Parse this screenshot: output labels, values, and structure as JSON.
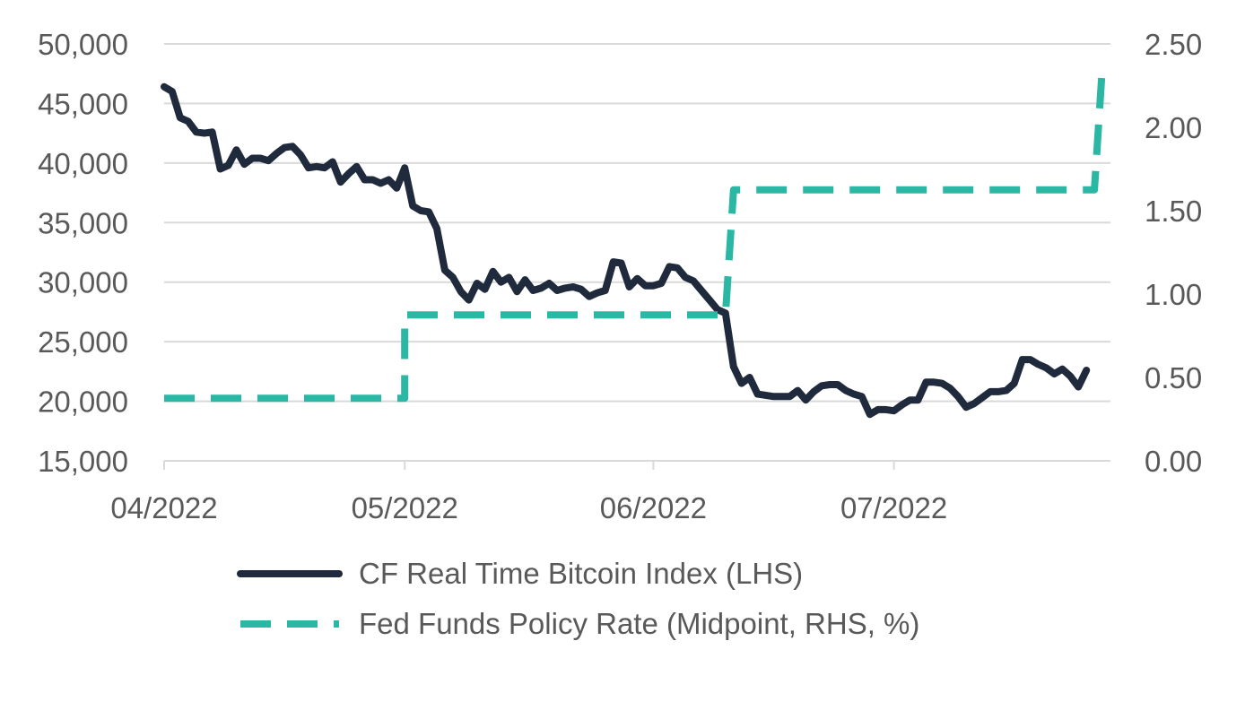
{
  "chart_data": {
    "type": "line",
    "x_range": [
      "2022-04-01",
      "2022-07-28"
    ],
    "x_ticks": [
      {
        "date": "2022-04-01",
        "label": "04/2022"
      },
      {
        "date": "2022-05-01",
        "label": "05/2022"
      },
      {
        "date": "2022-06-01",
        "label": "06/2022"
      },
      {
        "date": "2022-07-01",
        "label": "07/2022"
      }
    ],
    "y_left": {
      "min": 15000,
      "max": 50000,
      "ticks": [
        "15,000",
        "20,000",
        "25,000",
        "30,000",
        "35,000",
        "40,000",
        "45,000",
        "50,000"
      ],
      "values": [
        15000,
        20000,
        25000,
        30000,
        35000,
        40000,
        45000,
        50000
      ]
    },
    "y_right": {
      "min": 0,
      "max": 2.5,
      "ticks": [
        "0.00",
        "0.50",
        "1.00",
        "1.50",
        "2.00",
        "2.50"
      ],
      "values": [
        0,
        0.5,
        1.0,
        1.5,
        2.0,
        2.5
      ]
    },
    "grid": true,
    "legend_position": "bottom",
    "series": [
      {
        "name": "CF Real Time Bitcoin Index (LHS)",
        "axis": "left",
        "color": "#1f2a3c",
        "style": "solid",
        "points": [
          [
            "2022-04-01",
            46400
          ],
          [
            "2022-04-02",
            46000
          ],
          [
            "2022-04-03",
            43800
          ],
          [
            "2022-04-04",
            43500
          ],
          [
            "2022-04-05",
            42600
          ],
          [
            "2022-04-06",
            42500
          ],
          [
            "2022-04-07",
            42600
          ],
          [
            "2022-04-08",
            39500
          ],
          [
            "2022-04-09",
            39800
          ],
          [
            "2022-04-10",
            41100
          ],
          [
            "2022-04-11",
            39900
          ],
          [
            "2022-04-12",
            40400
          ],
          [
            "2022-04-13",
            40400
          ],
          [
            "2022-04-14",
            40200
          ],
          [
            "2022-04-15",
            40800
          ],
          [
            "2022-04-16",
            41300
          ],
          [
            "2022-04-17",
            41400
          ],
          [
            "2022-04-18",
            40700
          ],
          [
            "2022-04-19",
            39600
          ],
          [
            "2022-04-20",
            39700
          ],
          [
            "2022-04-21",
            39600
          ],
          [
            "2022-04-22",
            40100
          ],
          [
            "2022-04-23",
            38400
          ],
          [
            "2022-04-24",
            39100
          ],
          [
            "2022-04-25",
            39700
          ],
          [
            "2022-04-26",
            38600
          ],
          [
            "2022-04-27",
            38600
          ],
          [
            "2022-04-28",
            38300
          ],
          [
            "2022-04-29",
            38600
          ],
          [
            "2022-04-30",
            37900
          ],
          [
            "2022-05-01",
            39600
          ],
          [
            "2022-05-02",
            36400
          ],
          [
            "2022-05-03",
            36000
          ],
          [
            "2022-05-04",
            35900
          ],
          [
            "2022-05-05",
            34500
          ],
          [
            "2022-05-06",
            31000
          ],
          [
            "2022-05-07",
            30400
          ],
          [
            "2022-05-08",
            29200
          ],
          [
            "2022-05-09",
            28500
          ],
          [
            "2022-05-10",
            29900
          ],
          [
            "2022-05-11",
            29400
          ],
          [
            "2022-05-12",
            30900
          ],
          [
            "2022-05-13",
            30000
          ],
          [
            "2022-05-14",
            30400
          ],
          [
            "2022-05-15",
            29200
          ],
          [
            "2022-05-16",
            30200
          ],
          [
            "2022-05-17",
            29300
          ],
          [
            "2022-05-18",
            29500
          ],
          [
            "2022-05-19",
            29900
          ],
          [
            "2022-05-20",
            29300
          ],
          [
            "2022-05-21",
            29500
          ],
          [
            "2022-05-22",
            29600
          ],
          [
            "2022-05-23",
            29400
          ],
          [
            "2022-05-24",
            28800
          ],
          [
            "2022-05-25",
            29100
          ],
          [
            "2022-05-26",
            29300
          ],
          [
            "2022-05-27",
            31700
          ],
          [
            "2022-05-28",
            31600
          ],
          [
            "2022-05-29",
            29600
          ],
          [
            "2022-05-30",
            30300
          ],
          [
            "2022-05-31",
            29700
          ],
          [
            "2022-06-01",
            29700
          ],
          [
            "2022-06-02",
            29900
          ],
          [
            "2022-06-03",
            31300
          ],
          [
            "2022-06-04",
            31200
          ],
          [
            "2022-06-05",
            30400
          ],
          [
            "2022-06-06",
            30100
          ],
          [
            "2022-06-07",
            29300
          ],
          [
            "2022-06-08",
            28500
          ],
          [
            "2022-06-09",
            27700
          ],
          [
            "2022-06-10",
            27400
          ],
          [
            "2022-06-11",
            22900
          ],
          [
            "2022-06-12",
            21500
          ],
          [
            "2022-06-13",
            22000
          ],
          [
            "2022-06-14",
            20600
          ],
          [
            "2022-06-15",
            20500
          ],
          [
            "2022-06-16",
            20400
          ],
          [
            "2022-06-17",
            20400
          ],
          [
            "2022-06-18",
            20400
          ],
          [
            "2022-06-19",
            20900
          ],
          [
            "2022-06-20",
            20100
          ],
          [
            "2022-06-21",
            20800
          ],
          [
            "2022-06-22",
            21300
          ],
          [
            "2022-06-23",
            21400
          ],
          [
            "2022-06-24",
            21400
          ],
          [
            "2022-06-25",
            20900
          ],
          [
            "2022-06-26",
            20600
          ],
          [
            "2022-06-27",
            20400
          ],
          [
            "2022-06-28",
            18900
          ],
          [
            "2022-06-29",
            19300
          ],
          [
            "2022-06-30",
            19300
          ],
          [
            "2022-07-01",
            19200
          ],
          [
            "2022-07-02",
            19700
          ],
          [
            "2022-07-03",
            20100
          ],
          [
            "2022-07-04",
            20100
          ],
          [
            "2022-07-05",
            21600
          ],
          [
            "2022-07-06",
            21600
          ],
          [
            "2022-07-07",
            21500
          ],
          [
            "2022-07-08",
            21100
          ],
          [
            "2022-07-09",
            20400
          ],
          [
            "2022-07-10",
            19500
          ],
          [
            "2022-07-11",
            19800
          ],
          [
            "2022-07-12",
            20300
          ],
          [
            "2022-07-13",
            20800
          ],
          [
            "2022-07-14",
            20800
          ],
          [
            "2022-07-15",
            20900
          ],
          [
            "2022-07-16",
            21500
          ],
          [
            "2022-07-17",
            23500
          ],
          [
            "2022-07-18",
            23500
          ],
          [
            "2022-07-19",
            23100
          ],
          [
            "2022-07-20",
            22800
          ],
          [
            "2022-07-21",
            22300
          ],
          [
            "2022-07-22",
            22700
          ],
          [
            "2022-07-23",
            22100
          ],
          [
            "2022-07-24",
            21200
          ],
          [
            "2022-07-25",
            22600
          ]
        ]
      },
      {
        "name": "Fed Funds Policy Rate (Midpoint, RHS, %)",
        "axis": "right",
        "color": "#2ab7a4",
        "style": "dashed",
        "points": [
          [
            "2022-04-01",
            0.375
          ],
          [
            "2022-05-01",
            0.375
          ],
          [
            "2022-05-01",
            0.875
          ],
          [
            "2022-06-10",
            0.875
          ],
          [
            "2022-06-11",
            1.625
          ],
          [
            "2022-07-26",
            1.625
          ],
          [
            "2022-07-27",
            2.375
          ]
        ]
      }
    ]
  }
}
